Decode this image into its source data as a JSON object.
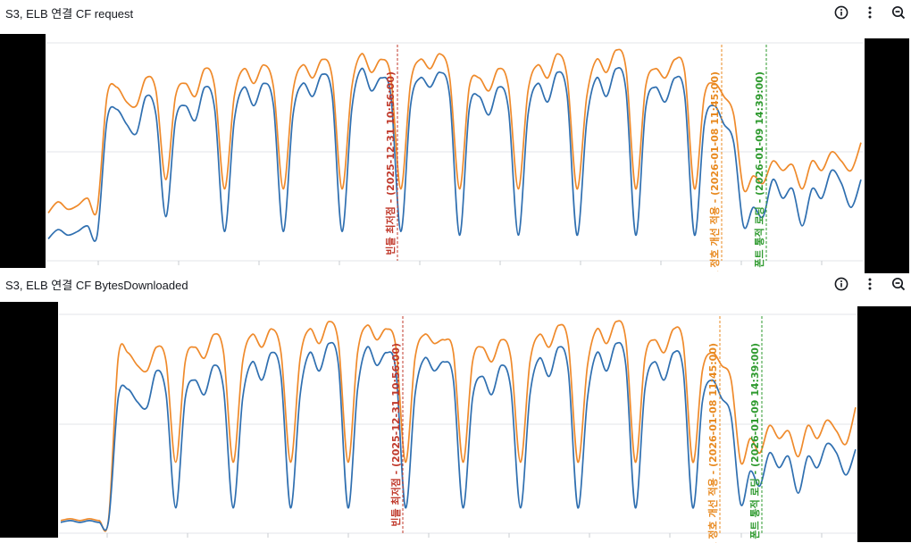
{
  "panels": [
    {
      "title": "S3, ELB 연결 CF request",
      "actions": {
        "info": "info-icon",
        "more": "more-vertical-icon",
        "zoom": "zoom-out-icon"
      }
    },
    {
      "title": "S3, ELB 연결 CF BytesDownloaded",
      "actions": {
        "info": "info-icon",
        "more": "more-vertical-icon",
        "zoom": "zoom-out-icon"
      }
    }
  ],
  "colors": {
    "series_blue": "#2f6fb0",
    "series_orange": "#ef8a2b",
    "annotation_red": "#c0392b",
    "annotation_orange": "#e8891f",
    "annotation_green": "#2e9a2e",
    "grid": "#e3e5e8"
  },
  "chart_data": [
    {
      "type": "line",
      "title": "S3, ELB 연결 CF request",
      "x": "time (hourly, 2025-12-25 → 2026-01-12)",
      "series": [
        {
          "name": "series-1 (blue)",
          "values": [
            0.08,
            0.13,
            0.1,
            0.12,
            0.15,
            0.1,
            0.72,
            0.78,
            0.7,
            0.65,
            0.85,
            0.75,
            0.2,
            0.72,
            0.8,
            0.72,
            0.9,
            0.78,
            0.12,
            0.72,
            0.9,
            0.8,
            0.92,
            0.8,
            0.12,
            0.75,
            0.92,
            0.85,
            0.97,
            0.85,
            0.12,
            0.78,
            1.0,
            0.88,
            0.95,
            0.85,
            0.12,
            0.8,
            0.95,
            0.9,
            0.98,
            0.85,
            0.1,
            0.78,
            0.85,
            0.75,
            0.9,
            0.78,
            0.1,
            0.75,
            0.92,
            0.82,
            0.98,
            0.85,
            0.1,
            0.72,
            0.95,
            0.85,
            1.0,
            0.88,
            0.1,
            0.78,
            0.9,
            0.82,
            0.95,
            0.85,
            0.1,
            0.7,
            0.8,
            0.7,
            0.6,
            0.15,
            0.25,
            0.2,
            0.4,
            0.3,
            0.35,
            0.15,
            0.35,
            0.3,
            0.45,
            0.38,
            0.25,
            0.4
          ]
        },
        {
          "name": "series-2 (orange)",
          "values": [
            0.22,
            0.28,
            0.24,
            0.26,
            0.3,
            0.24,
            0.85,
            0.9,
            0.82,
            0.8,
            0.95,
            0.88,
            0.4,
            0.85,
            0.92,
            0.85,
            1.0,
            0.9,
            0.35,
            0.85,
            1.0,
            0.92,
            1.02,
            0.9,
            0.35,
            0.88,
            1.02,
            0.95,
            1.05,
            0.95,
            0.35,
            0.9,
            1.08,
            0.98,
            1.05,
            0.95,
            0.35,
            0.92,
            1.05,
            1.0,
            1.08,
            0.95,
            0.35,
            0.9,
            0.95,
            0.88,
            1.0,
            0.9,
            0.35,
            0.88,
            1.02,
            0.95,
            1.08,
            0.95,
            0.35,
            0.85,
            1.05,
            0.98,
            1.1,
            1.0,
            0.35,
            0.9,
            1.0,
            0.95,
            1.05,
            0.98,
            0.35,
            0.85,
            0.92,
            0.85,
            0.75,
            0.35,
            0.42,
            0.38,
            0.5,
            0.45,
            0.48,
            0.35,
            0.5,
            0.45,
            0.55,
            0.5,
            0.45,
            0.6
          ]
        }
      ],
      "annotations": [
        {
          "label": "빈들 최저점 - (2025-12-31 10:56:00)",
          "color": "#c0392b"
        },
        {
          "label": "폰트 정호 개선 적용 - (2026-01-08 11:45:00)",
          "color": "#e8891f"
        },
        {
          "label": "폰트 통적 로딩 - (2026-01-09 14:39:00)",
          "color": "#2e9a2e"
        }
      ]
    },
    {
      "type": "line",
      "title": "S3, ELB 연결 CF BytesDownloaded",
      "x": "time (hourly, 2025-12-25 → 2026-01-12)",
      "series": [
        {
          "name": "series-1 (blue)",
          "values": [
            0.02,
            0.03,
            0.02,
            0.03,
            0.02,
            0.03,
            0.7,
            0.75,
            0.68,
            0.65,
            0.85,
            0.72,
            0.1,
            0.7,
            0.8,
            0.72,
            0.88,
            0.75,
            0.1,
            0.7,
            0.9,
            0.8,
            0.95,
            0.82,
            0.1,
            0.72,
            0.95,
            0.85,
            1.0,
            0.88,
            0.1,
            0.75,
            0.98,
            0.88,
            0.95,
            0.85,
            0.1,
            0.72,
            0.92,
            0.85,
            0.9,
            0.8,
            0.1,
            0.7,
            0.82,
            0.72,
            0.88,
            0.75,
            0.1,
            0.72,
            0.92,
            0.82,
            0.98,
            0.85,
            0.1,
            0.7,
            0.95,
            0.85,
            1.0,
            0.88,
            0.1,
            0.75,
            0.9,
            0.8,
            0.95,
            0.85,
            0.1,
            0.68,
            0.8,
            0.7,
            0.6,
            0.12,
            0.3,
            0.22,
            0.4,
            0.32,
            0.38,
            0.18,
            0.38,
            0.32,
            0.45,
            0.4,
            0.28,
            0.42
          ]
        },
        {
          "name": "series-2 (orange)",
          "values": [
            0.03,
            0.04,
            0.03,
            0.04,
            0.03,
            0.04,
            0.92,
            0.95,
            0.88,
            0.85,
            0.98,
            0.9,
            0.35,
            0.9,
            0.98,
            0.92,
            1.05,
            0.95,
            0.35,
            0.9,
            1.05,
            0.98,
            1.08,
            0.95,
            0.35,
            0.92,
            1.08,
            1.0,
            1.12,
            1.0,
            0.35,
            0.95,
            1.1,
            1.02,
            1.08,
            0.98,
            0.35,
            0.92,
            1.05,
            1.0,
            1.02,
            0.95,
            0.35,
            0.9,
            0.98,
            0.9,
            1.02,
            0.92,
            0.35,
            0.9,
            1.05,
            0.98,
            1.1,
            1.0,
            0.35,
            0.88,
            1.08,
            1.0,
            1.12,
            1.02,
            0.35,
            0.92,
            1.02,
            0.95,
            1.08,
            1.0,
            0.35,
            0.85,
            0.95,
            0.88,
            0.8,
            0.35,
            0.48,
            0.4,
            0.55,
            0.48,
            0.52,
            0.38,
            0.55,
            0.48,
            0.58,
            0.52,
            0.45,
            0.65
          ]
        }
      ],
      "annotations": [
        {
          "label": "빈들 최저점 - (2025-12-31 10:56:00)",
          "color": "#c0392b"
        },
        {
          "label": "폰트 정호 개선 적용 - (2026-01-08 11:45:00)",
          "color": "#e8891f"
        },
        {
          "label": "폰트 통적 로딩 - (2026-01-09 14:39:00)",
          "color": "#2e9a2e"
        }
      ]
    }
  ]
}
